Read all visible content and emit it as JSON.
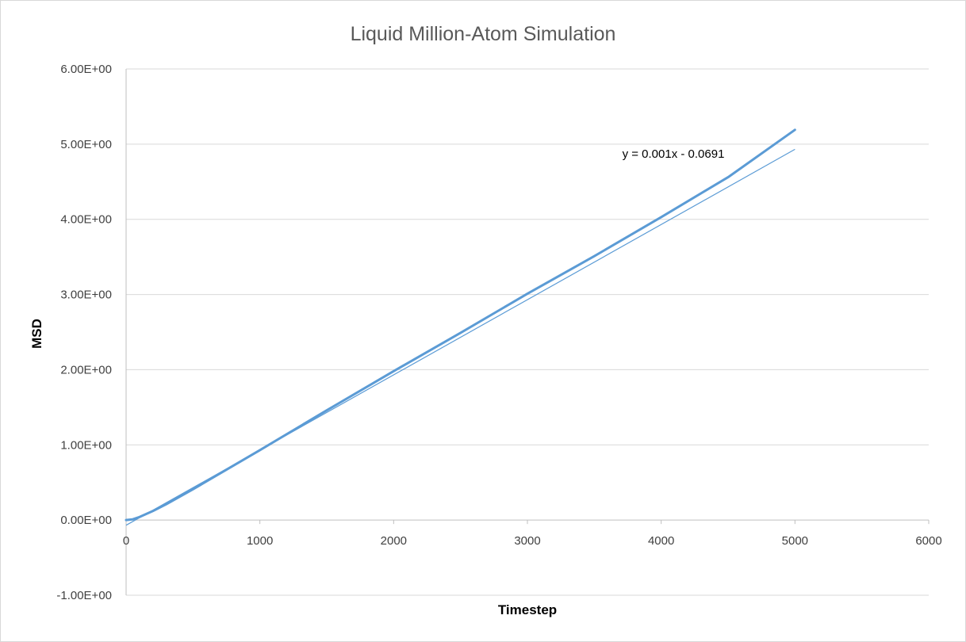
{
  "chart_data": {
    "type": "line",
    "title": "Liquid Million-Atom Simulation",
    "xlabel": "Timestep",
    "ylabel": "MSD",
    "xlim": [
      0,
      6000
    ],
    "ylim": [
      -1.0,
      6.0
    ],
    "x_ticks": [
      0,
      1000,
      2000,
      3000,
      4000,
      5000,
      6000
    ],
    "x_tick_labels": [
      "0",
      "1000",
      "2000",
      "3000",
      "4000",
      "5000",
      "6000"
    ],
    "y_ticks": [
      -1,
      0,
      1,
      2,
      3,
      4,
      5,
      6
    ],
    "y_tick_labels": [
      "-1.00E+00",
      "0.00E+00",
      "1.00E+00",
      "2.00E+00",
      "3.00E+00",
      "4.00E+00",
      "5.00E+00",
      "6.00E+00"
    ],
    "grid": "horizontal",
    "legend": "none",
    "series": [
      {
        "color": "#5b9bd5",
        "x": [
          0,
          50,
          100,
          200,
          300,
          500,
          1000,
          1500,
          2000,
          2500,
          3000,
          3500,
          4000,
          4500,
          5000
        ],
        "y": [
          0.0,
          0.01,
          0.04,
          0.12,
          0.21,
          0.41,
          0.93,
          1.46,
          1.98,
          2.49,
          3.01,
          3.51,
          4.03,
          4.56,
          5.19
        ]
      }
    ],
    "trendline": {
      "type": "linear",
      "slope": 0.001,
      "intercept": -0.0691,
      "x_range": [
        0,
        5000
      ],
      "equation_label": "y = 0.001x - 0.0691",
      "color": "#5b9bd5"
    }
  }
}
